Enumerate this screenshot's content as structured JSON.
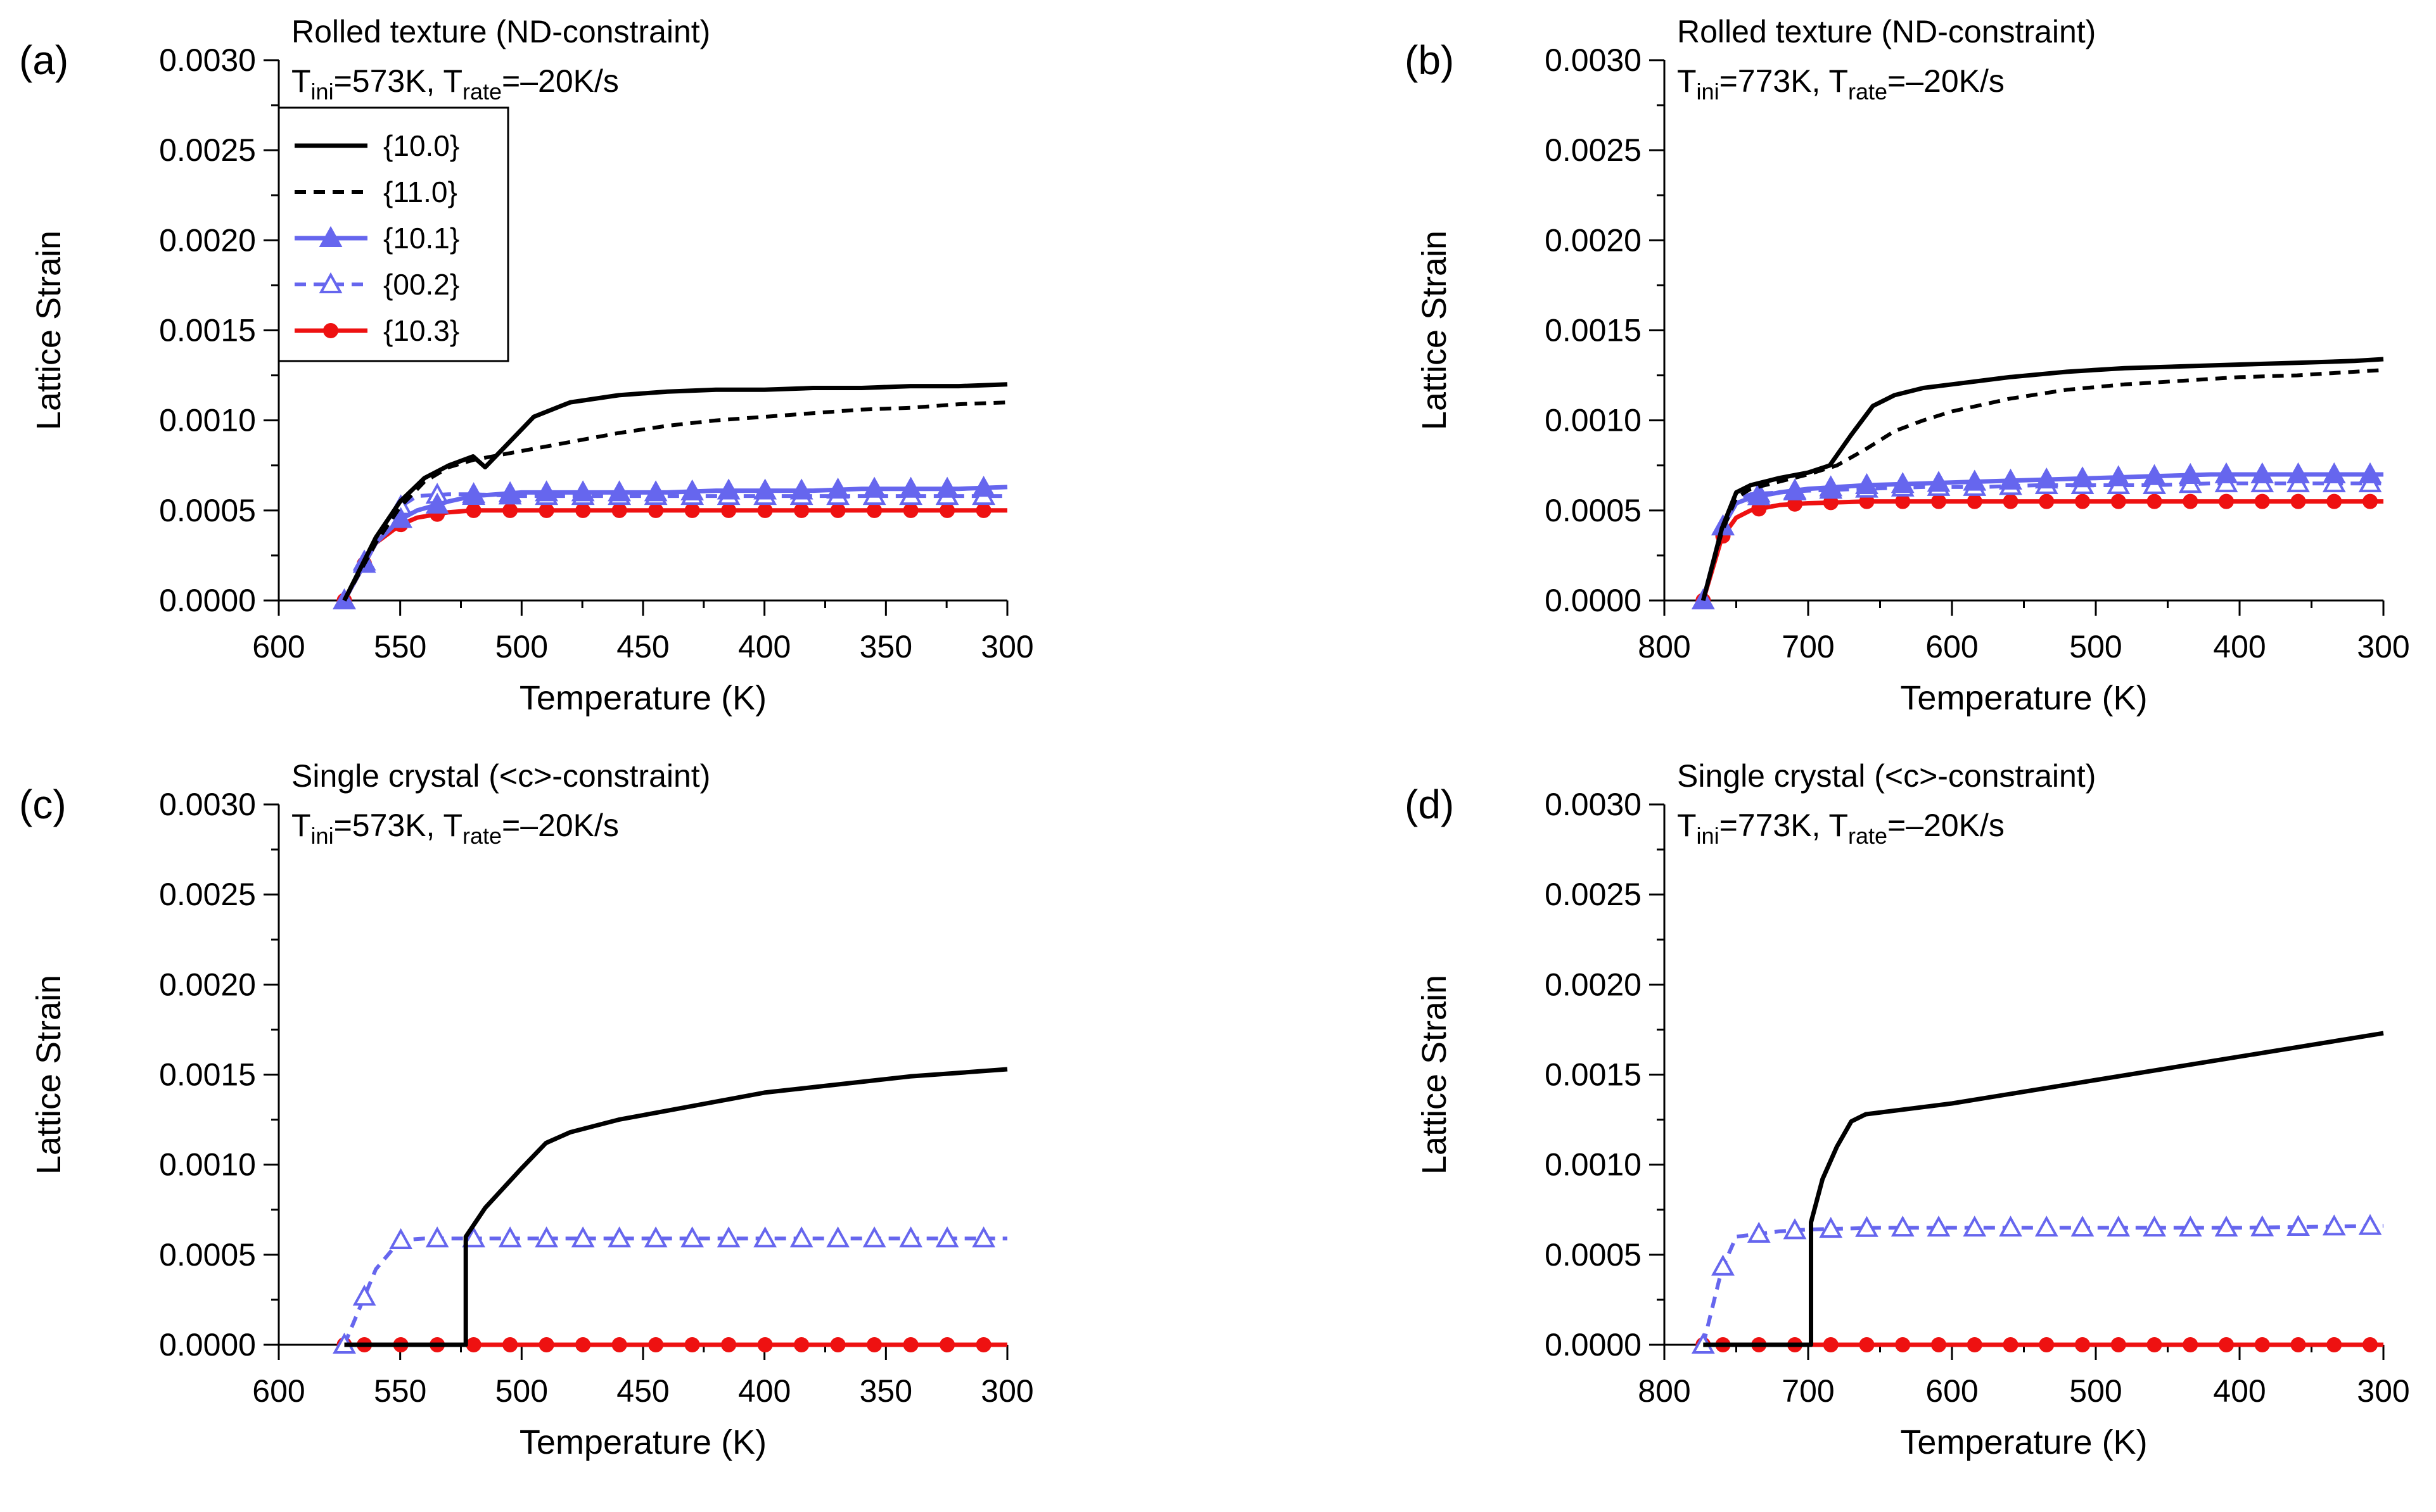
{
  "legend": {
    "items": [
      {
        "label": "{10.0}",
        "series": "s100"
      },
      {
        "label": "{11.0}",
        "series": "s110"
      },
      {
        "label": "{10.1}",
        "series": "s101"
      },
      {
        "label": "{00.2}",
        "series": "s002"
      },
      {
        "label": "{10.3}",
        "series": "s103"
      }
    ]
  },
  "styles": {
    "black": "#000000",
    "blue": "#6666ee",
    "red": "#ee1111"
  },
  "chart_data": [
    {
      "type": "line",
      "panel_label": "(a)",
      "title": "Rolled texture (ND-constraint)",
      "subtitle": {
        "t": "T",
        "ini_sub": "ini",
        "ini_val": "=573K, ",
        "t2": "T",
        "rate_sub": "rate",
        "rate_val": "=–20K/s"
      },
      "xlabel": "Temperature (K)",
      "ylabel": "Lattice Strain",
      "xlim": [
        600,
        300
      ],
      "ylim": [
        0,
        0.003
      ],
      "xticks": [
        "600",
        "550",
        "500",
        "450",
        "400",
        "350",
        "300"
      ],
      "xtick_values": [
        600,
        550,
        500,
        450,
        400,
        350,
        300
      ],
      "yticks": [
        "0.0000",
        "0.0005",
        "0.0010",
        "0.0015",
        "0.0020",
        "0.0025",
        "0.0030"
      ],
      "ytick_values": [
        0,
        0.0005,
        0.001,
        0.0015,
        0.002,
        0.0025,
        0.003
      ],
      "legend": true,
      "series": [
        {
          "name": "{10.0}",
          "style": "solid-black",
          "x": [
            573,
            560,
            550,
            540,
            530,
            520,
            515,
            505,
            495,
            480,
            460,
            440,
            420,
            400,
            380,
            360,
            340,
            320,
            300
          ],
          "y": [
            0,
            0.00035,
            0.00055,
            0.00068,
            0.00075,
            0.0008,
            0.00074,
            0.00088,
            0.00102,
            0.0011,
            0.00114,
            0.00116,
            0.00117,
            0.00117,
            0.00118,
            0.00118,
            0.00119,
            0.00119,
            0.0012
          ]
        },
        {
          "name": "{11.0}",
          "style": "dashed-black",
          "x": [
            573,
            560,
            550,
            540,
            530,
            520,
            500,
            480,
            460,
            440,
            420,
            400,
            380,
            360,
            340,
            320,
            300
          ],
          "y": [
            0,
            0.00032,
            0.00052,
            0.00066,
            0.00074,
            0.00078,
            0.00083,
            0.00088,
            0.00093,
            0.00097,
            0.001,
            0.00102,
            0.00104,
            0.00106,
            0.00107,
            0.00109,
            0.0011
          ]
        },
        {
          "name": "{10.1}",
          "style": "solid-blue-filled-triangle",
          "x": [
            573,
            560,
            550,
            543,
            530,
            520,
            500,
            480,
            460,
            440,
            420,
            400,
            380,
            360,
            340,
            320,
            300
          ],
          "y": [
            0,
            0.00032,
            0.00045,
            0.0005,
            0.00055,
            0.00058,
            0.0006,
            0.0006,
            0.0006,
            0.0006,
            0.00061,
            0.00061,
            0.00061,
            0.00062,
            0.00062,
            0.00062,
            0.00063
          ]
        },
        {
          "name": "{00.2}",
          "style": "dashed-blue-open-triangle",
          "x": [
            573,
            560,
            550,
            543,
            530,
            520,
            500,
            480,
            460,
            440,
            420,
            400,
            380,
            360,
            340,
            320,
            300
          ],
          "y": [
            0,
            0.00034,
            0.00052,
            0.00058,
            0.00059,
            0.00059,
            0.00058,
            0.00058,
            0.00058,
            0.00058,
            0.00058,
            0.00058,
            0.00058,
            0.00058,
            0.00058,
            0.00058,
            0.00058
          ]
        },
        {
          "name": "{10.3}",
          "style": "solid-red-filled-circle",
          "x": [
            573,
            560,
            550,
            543,
            530,
            520,
            500,
            480,
            460,
            440,
            420,
            400,
            380,
            360,
            340,
            320,
            300
          ],
          "y": [
            0,
            0.00032,
            0.00042,
            0.00046,
            0.00049,
            0.0005,
            0.0005,
            0.0005,
            0.0005,
            0.0005,
            0.0005,
            0.0005,
            0.0005,
            0.0005,
            0.0005,
            0.0005,
            0.0005
          ]
        }
      ]
    },
    {
      "type": "line",
      "panel_label": "(b)",
      "title": "Rolled texture (ND-constraint)",
      "subtitle": {
        "t": "T",
        "ini_sub": "ini",
        "ini_val": "=773K, ",
        "t2": "T",
        "rate_sub": "rate",
        "rate_val": "=–20K/s"
      },
      "xlabel": "Temperature (K)",
      "ylabel": "Lattice Strain",
      "xlim": [
        800,
        300
      ],
      "ylim": [
        0,
        0.003
      ],
      "xticks": [
        "800",
        "700",
        "600",
        "500",
        "400",
        "300"
      ],
      "xtick_values": [
        800,
        700,
        600,
        500,
        400,
        300
      ],
      "yticks": [
        "0.0000",
        "0.0005",
        "0.0010",
        "0.0015",
        "0.0020",
        "0.0025",
        "0.0030"
      ],
      "ytick_values": [
        0,
        0.0005,
        0.001,
        0.0015,
        0.002,
        0.0025,
        0.003
      ],
      "legend": false,
      "series": [
        {
          "name": "{10.0}",
          "style": "solid-black",
          "x": [
            773,
            760,
            750,
            740,
            720,
            700,
            685,
            670,
            655,
            640,
            620,
            600,
            560,
            520,
            480,
            440,
            400,
            360,
            320,
            300
          ],
          "y": [
            0,
            0.0004,
            0.0006,
            0.00064,
            0.00068,
            0.00071,
            0.00075,
            0.00092,
            0.00108,
            0.00114,
            0.00118,
            0.0012,
            0.00124,
            0.00127,
            0.00129,
            0.0013,
            0.00131,
            0.00132,
            0.00133,
            0.00134
          ]
        },
        {
          "name": "{11.0}",
          "style": "dashed-black",
          "x": [
            773,
            760,
            750,
            740,
            720,
            700,
            680,
            660,
            640,
            620,
            600,
            560,
            520,
            480,
            440,
            400,
            360,
            320,
            300
          ],
          "y": [
            0,
            0.00038,
            0.00057,
            0.00062,
            0.00066,
            0.0007,
            0.00075,
            0.00084,
            0.00094,
            0.001,
            0.00105,
            0.00112,
            0.00117,
            0.0012,
            0.00122,
            0.00124,
            0.00125,
            0.00127,
            0.00128
          ]
        },
        {
          "name": "{10.1}",
          "style": "solid-blue-filled-triangle",
          "x": [
            773,
            760,
            750,
            740,
            720,
            700,
            660,
            620,
            580,
            540,
            500,
            460,
            420,
            380,
            340,
            300
          ],
          "y": [
            0,
            0.0004,
            0.00054,
            0.00057,
            0.0006,
            0.00062,
            0.00064,
            0.00065,
            0.00066,
            0.00067,
            0.00068,
            0.00069,
            0.0007,
            0.0007,
            0.0007,
            0.0007
          ]
        },
        {
          "name": "{00.2}",
          "style": "dashed-blue-open-triangle",
          "x": [
            773,
            760,
            750,
            740,
            720,
            700,
            660,
            620,
            580,
            540,
            500,
            460,
            420,
            380,
            340,
            300
          ],
          "y": [
            0,
            0.0004,
            0.00056,
            0.00059,
            0.0006,
            0.00061,
            0.00062,
            0.00063,
            0.00063,
            0.00064,
            0.00064,
            0.00064,
            0.00065,
            0.00065,
            0.00065,
            0.00065
          ]
        },
        {
          "name": "{10.3}",
          "style": "solid-red-filled-circle",
          "x": [
            773,
            760,
            750,
            740,
            720,
            700,
            660,
            620,
            580,
            540,
            500,
            460,
            420,
            380,
            340,
            300
          ],
          "y": [
            0,
            0.00035,
            0.00046,
            0.0005,
            0.00053,
            0.00054,
            0.00055,
            0.00055,
            0.00055,
            0.00055,
            0.00055,
            0.00055,
            0.00055,
            0.00055,
            0.00055,
            0.00055
          ]
        }
      ]
    },
    {
      "type": "line",
      "panel_label": "(c)",
      "title": "Single crystal (<c>-constraint)",
      "subtitle": {
        "t": "T",
        "ini_sub": "ini",
        "ini_val": "=573K, ",
        "t2": "T",
        "rate_sub": "rate",
        "rate_val": "=–20K/s"
      },
      "xlabel": "Temperature (K)",
      "ylabel": "Lattice Strain",
      "xlim": [
        600,
        300
      ],
      "ylim": [
        0,
        0.003
      ],
      "xticks": [
        "600",
        "550",
        "500",
        "450",
        "400",
        "350",
        "300"
      ],
      "xtick_values": [
        600,
        550,
        500,
        450,
        400,
        350,
        300
      ],
      "yticks": [
        "0.0000",
        "0.0005",
        "0.0010",
        "0.0015",
        "0.0020",
        "0.0025",
        "0.0030"
      ],
      "ytick_values": [
        0,
        0.0005,
        0.001,
        0.0015,
        0.002,
        0.0025,
        0.003
      ],
      "legend": false,
      "series": [
        {
          "name": "{10.0}",
          "style": "solid-black",
          "x": [
            573,
            523,
            523,
            515,
            500,
            490,
            480,
            460,
            440,
            420,
            400,
            380,
            360,
            340,
            320,
            300
          ],
          "y": [
            0,
            0,
            0.0006,
            0.00076,
            0.00098,
            0.00112,
            0.00118,
            0.00125,
            0.0013,
            0.00135,
            0.0014,
            0.00143,
            0.00146,
            0.00149,
            0.00151,
            0.00153
          ]
        },
        {
          "name": "{00.2}",
          "style": "dashed-blue-open-triangle",
          "x": [
            573,
            560,
            550,
            540,
            520,
            500,
            480,
            460,
            440,
            420,
            400,
            380,
            360,
            340,
            320,
            300
          ],
          "y": [
            0,
            0.00042,
            0.00058,
            0.00059,
            0.00059,
            0.00059,
            0.00059,
            0.00059,
            0.00059,
            0.00059,
            0.00059,
            0.00059,
            0.00059,
            0.00059,
            0.00059,
            0.00059
          ]
        },
        {
          "name": "{10.3}",
          "style": "solid-red-filled-circle",
          "x": [
            573,
            550,
            520,
            500,
            480,
            460,
            440,
            420,
            400,
            380,
            360,
            340,
            320,
            300
          ],
          "y": [
            0,
            0,
            0,
            0,
            0,
            0,
            0,
            0,
            0,
            0,
            0,
            0,
            0,
            0
          ]
        }
      ]
    },
    {
      "type": "line",
      "panel_label": "(d)",
      "title": "Single crystal (<c>-constraint)",
      "subtitle": {
        "t": "T",
        "ini_sub": "ini",
        "ini_val": "=773K, ",
        "t2": "T",
        "rate_sub": "rate",
        "rate_val": "=–20K/s"
      },
      "xlabel": "Temperature (K)",
      "ylabel": "Lattice Strain",
      "xlim": [
        800,
        300
      ],
      "ylim": [
        0,
        0.003
      ],
      "xticks": [
        "800",
        "700",
        "600",
        "500",
        "400",
        "300"
      ],
      "xtick_values": [
        800,
        700,
        600,
        500,
        400,
        300
      ],
      "yticks": [
        "0.0000",
        "0.0005",
        "0.0010",
        "0.0015",
        "0.0020",
        "0.0025",
        "0.0030"
      ],
      "ytick_values": [
        0,
        0.0005,
        0.001,
        0.0015,
        0.002,
        0.0025,
        0.003
      ],
      "legend": false,
      "series": [
        {
          "name": "{10.0}",
          "style": "solid-black",
          "x": [
            773,
            698,
            698,
            690,
            680,
            670,
            660,
            600,
            500,
            400,
            300
          ],
          "y": [
            0,
            0,
            0.00068,
            0.00092,
            0.0011,
            0.00124,
            0.00128,
            0.00134,
            0.00147,
            0.0016,
            0.00173
          ]
        },
        {
          "name": "{00.2}",
          "style": "dashed-blue-open-triangle",
          "x": [
            773,
            760,
            750,
            740,
            720,
            700,
            650,
            600,
            500,
            400,
            300
          ],
          "y": [
            0,
            0.00042,
            0.0006,
            0.00061,
            0.00063,
            0.00064,
            0.00065,
            0.00065,
            0.00065,
            0.00065,
            0.00066
          ]
        },
        {
          "name": "{10.3}",
          "style": "solid-red-filled-circle",
          "x": [
            773,
            700,
            600,
            500,
            400,
            300
          ],
          "y": [
            0,
            0,
            0,
            0,
            0,
            0
          ]
        }
      ]
    }
  ]
}
